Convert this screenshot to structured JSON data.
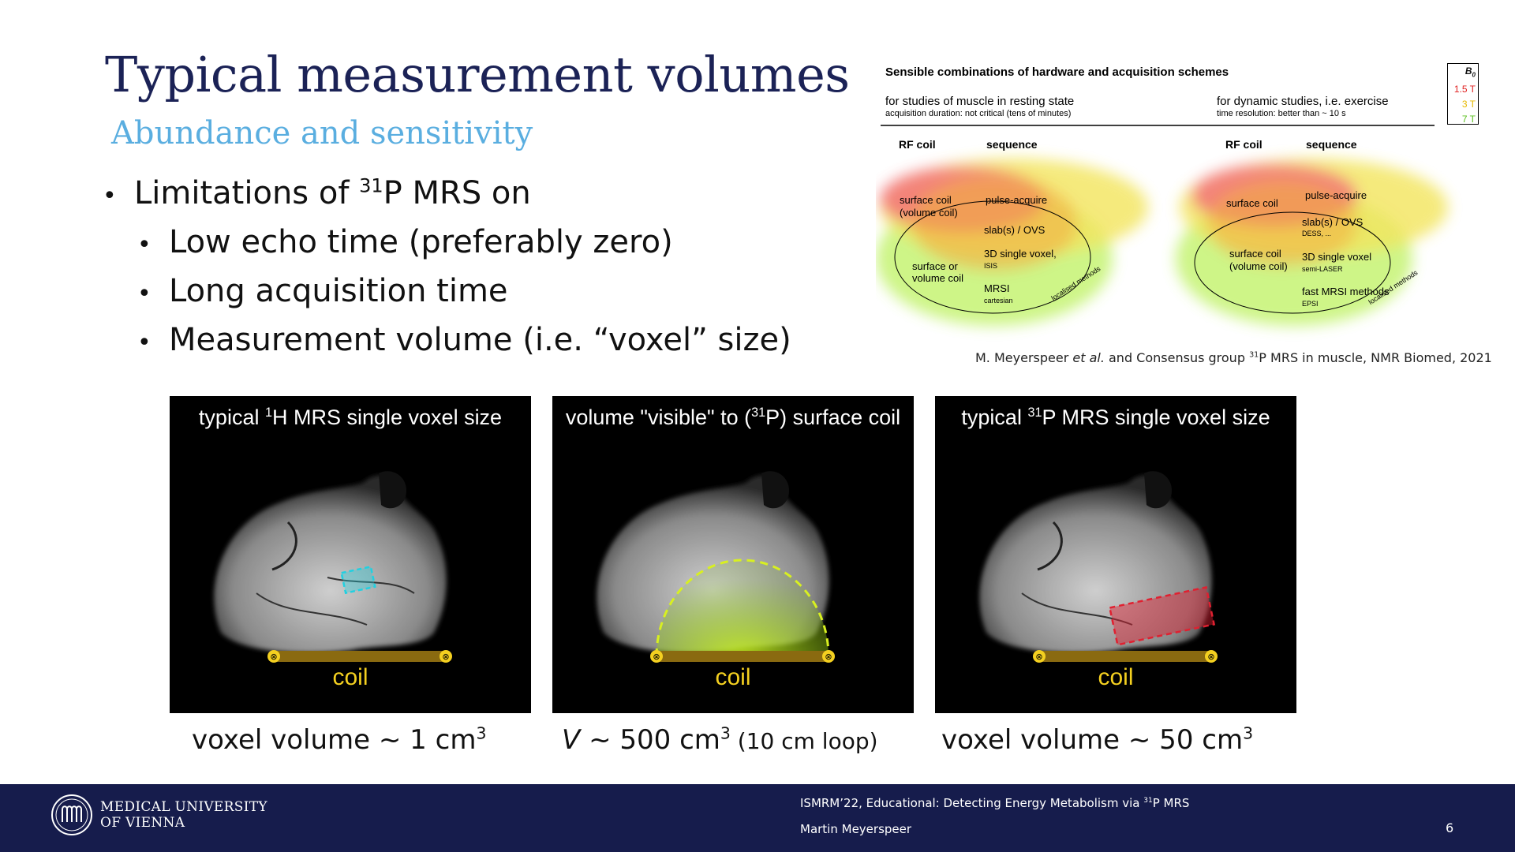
{
  "slide": {
    "title": "Typical measurement volumes",
    "subtitle": "Abundance and sensitivity"
  },
  "bullets": {
    "main_pre": "Limitations of ",
    "main_sup": "31",
    "main_post": "P MRS on",
    "items": [
      "Low echo time (preferably zero)",
      "Long acquisition time",
      "Measurement volume (i.e. “voxel” size)"
    ]
  },
  "diagram": {
    "heading": "Sensible combinations of hardware and acquisition schemes",
    "left_study": "for studies of muscle in resting state",
    "left_study_note": "acquisition duration: not critical (tens of minutes)",
    "right_study": "for dynamic studies, i.e. exercise",
    "right_study_note": "time resolution:  better than ~ 10 s",
    "col_rf": "RF coil",
    "col_seq": "sequence",
    "b0_label": "B",
    "b0_sub": "0",
    "b0_fields": [
      {
        "label": "1.5 T",
        "color": "#e02020"
      },
      {
        "label": "3 T",
        "color": "#e6b800"
      },
      {
        "label": "7 T",
        "color": "#5cc020"
      }
    ],
    "left": {
      "coil_top": "surface coil\n(volume coil)",
      "seq_top": "pulse-acquire",
      "slab": "slab(s) /  OVS",
      "svs": "3D single voxel,",
      "svs_sub": "ISIS",
      "coil_mid": "surface or\nvolume coil",
      "mrsi": "MRSI",
      "mrsi_sub": "cartesian",
      "localised": "localised methods"
    },
    "right": {
      "coil_top": "surface coil",
      "seq_top": "pulse-acquire",
      "slab": "slab(s) /  OVS",
      "slab_sub": "DESS, ...",
      "coil_mid": "surface coil\n(volume coil)",
      "svs": "3D single voxel",
      "svs_sub": "semi-LASER",
      "mrsi": "fast MRSI methods",
      "mrsi_sub": "EPSI",
      "localised": "localised methods"
    },
    "citation_pre": "M. Meyerspeer ",
    "citation_etal": "et al.",
    "citation_mid": " and Consensus group ",
    "citation_sup": "31",
    "citation_post": "P MRS in muscle, NMR Biomed, 2021"
  },
  "panels": [
    {
      "title_pre": "typical ",
      "title_sup": "1",
      "title_post": "H MRS single voxel size",
      "coil": "coil",
      "caption_pre": "voxel volume ~ 1 cm",
      "caption_sup": "3",
      "caption_post": "",
      "roi_color": "#22d0e0"
    },
    {
      "title_pre": "volume \"visible\" to (",
      "title_sup": "31",
      "title_post": "P) surface coil",
      "coil": "coil",
      "caption_italic": "V",
      "caption_pre": " ~ 500 cm",
      "caption_sup": "3",
      "caption_post": " (10 cm loop)",
      "roi_color": "#c8f020"
    },
    {
      "title_pre": "typical ",
      "title_sup": "31",
      "title_post": "P MRS single voxel size",
      "coil": "coil",
      "caption_pre": "voxel volume ~ 50 cm",
      "caption_sup": "3",
      "caption_post": "",
      "roi_color": "#e02030"
    }
  ],
  "footer": {
    "university_line1": "MEDICAL UNIVERSITY",
    "university_line2": "OF VIENNA",
    "event_pre": "ISMRM’22, Educational: Detecting Energy Metabolism via ",
    "event_sup": "31",
    "event_post": "P MRS",
    "author": "Martin  Meyerspeer",
    "page": "6"
  }
}
